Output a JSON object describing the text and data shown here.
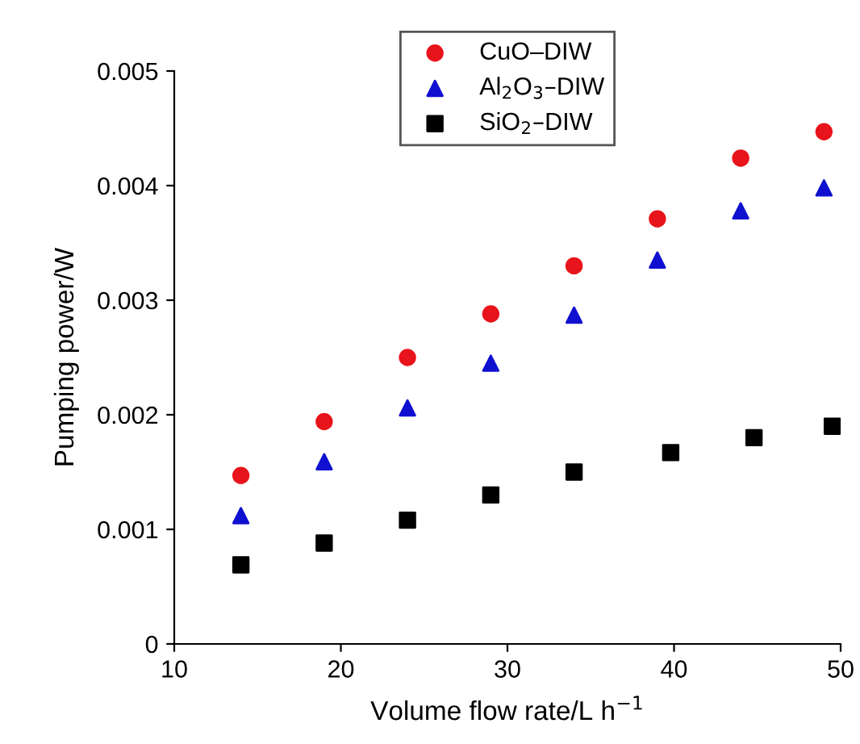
{
  "chart_data": {
    "type": "scatter",
    "xlabel": "Volume flow rate/L h$^{−1}$",
    "ylabel": "Pumping power/W",
    "xlim": [
      10,
      50
    ],
    "xticks": [
      10,
      20,
      30,
      40,
      50
    ],
    "ylim": [
      0,
      0.005
    ],
    "yticks": [
      0,
      0.001,
      0.002,
      0.003,
      0.004,
      0.005
    ],
    "grid": false,
    "legend": "top",
    "series": [
      {
        "name": "CuO–DIW",
        "color": "#e8141b",
        "marker": "circle",
        "x": [
          14,
          19,
          24,
          29,
          34,
          39,
          44,
          49
        ],
        "values": [
          0.00147,
          0.00194,
          0.0025,
          0.00288,
          0.0033,
          0.00371,
          0.00424,
          0.00447
        ]
      },
      {
        "name": "Al$_{2}$O$_{3}$–DIW",
        "color": "#1010d0",
        "marker": "triangle",
        "x": [
          14,
          19,
          24,
          29,
          34,
          39,
          44,
          49
        ],
        "values": [
          0.00112,
          0.00159,
          0.00206,
          0.00245,
          0.00287,
          0.00335,
          0.00378,
          0.00398
        ]
      },
      {
        "name": "SiO$_{2}$–DIW",
        "color": "#000000",
        "marker": "square",
        "x": [
          14,
          19,
          24,
          29,
          34,
          39.8,
          44.8,
          49.5
        ],
        "values": [
          0.00069,
          0.00088,
          0.00108,
          0.0013,
          0.0015,
          0.00167,
          0.0018,
          0.0019
        ]
      }
    ]
  }
}
